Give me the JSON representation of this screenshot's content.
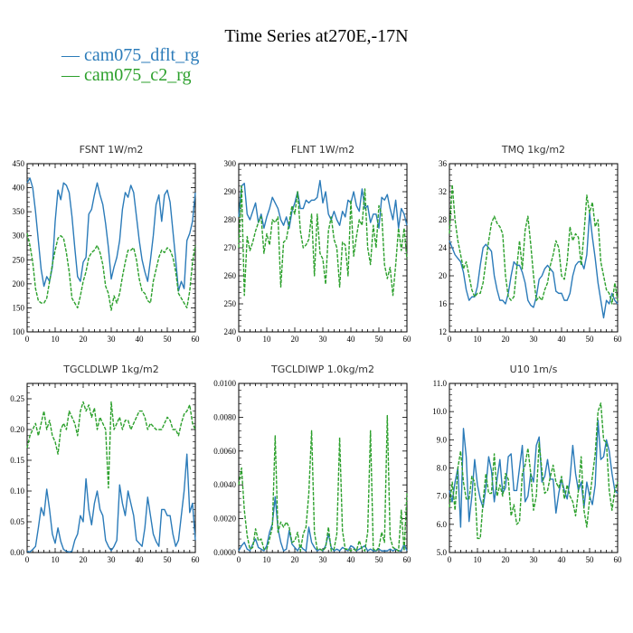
{
  "title": "Time Series at270E,-17N",
  "legend": [
    {
      "label": "— cam075_dflt_rg",
      "color": "#2b7bb9"
    },
    {
      "label": "— cam075_c2_rg",
      "color": "#2ca02c"
    }
  ],
  "colors": {
    "dflt": "#2b7bb9",
    "c2": "#2ca02c",
    "axis": "#000000"
  },
  "chart_data": [
    {
      "type": "line",
      "title": "FSNT   1W/m2",
      "xlim": [
        0,
        60
      ],
      "ylim": [
        100,
        450
      ],
      "xticks": [
        0,
        10,
        20,
        30,
        40,
        50,
        60
      ],
      "yticks": [
        100,
        150,
        200,
        250,
        300,
        350,
        400,
        450
      ],
      "ytick_labels": [
        "100",
        "150",
        "200",
        "250",
        "300",
        "350",
        "400",
        "450"
      ],
      "series": [
        {
          "name": "cam075_dflt_rg",
          "color": "#2b7bb9",
          "dashed": false,
          "values": [
            410,
            420,
            400,
            350,
            290,
            230,
            195,
            215,
            205,
            235,
            330,
            395,
            375,
            410,
            405,
            390,
            340,
            275,
            215,
            205,
            245,
            255,
            345,
            355,
            385,
            410,
            385,
            365,
            325,
            275,
            210,
            235,
            255,
            290,
            355,
            390,
            380,
            405,
            390,
            340,
            290,
            250,
            225,
            205,
            250,
            300,
            365,
            385,
            330,
            385,
            395,
            370,
            310,
            250,
            185,
            205,
            190,
            290,
            305,
            330,
            390
          ]
        },
        {
          "name": "cam075_c2_rg",
          "color": "#2ca02c",
          "dashed": true,
          "values": [
            305,
            280,
            245,
            190,
            165,
            160,
            160,
            170,
            205,
            240,
            270,
            295,
            300,
            295,
            265,
            225,
            170,
            160,
            150,
            175,
            205,
            225,
            255,
            265,
            270,
            280,
            265,
            240,
            195,
            180,
            145,
            175,
            160,
            180,
            215,
            245,
            270,
            270,
            275,
            250,
            210,
            185,
            180,
            165,
            160,
            205,
            230,
            255,
            270,
            265,
            275,
            270,
            255,
            225,
            180,
            170,
            160,
            150,
            185,
            245,
            280
          ]
        }
      ]
    },
    {
      "type": "line",
      "title": "FLNT   1W/m2",
      "xlim": [
        0,
        60
      ],
      "ylim": [
        240,
        300
      ],
      "xticks": [
        0,
        10,
        20,
        30,
        40,
        50,
        60
      ],
      "yticks": [
        240,
        250,
        260,
        270,
        280,
        290,
        300
      ],
      "ytick_labels": [
        "240",
        "250",
        "260",
        "270",
        "280",
        "290",
        "300"
      ],
      "series": [
        {
          "name": "cam075_dflt_rg",
          "color": "#2b7bb9",
          "dashed": false,
          "values": [
            281,
            292,
            293,
            282,
            280,
            283,
            286,
            279,
            282,
            277,
            281,
            284,
            288,
            286,
            284,
            280,
            278,
            281,
            277,
            283,
            286,
            290,
            284,
            284,
            287,
            286,
            287,
            287,
            288,
            294,
            286,
            290,
            282,
            280,
            283,
            280,
            278,
            283,
            281,
            287,
            286,
            290,
            285,
            283,
            291,
            284,
            285,
            279,
            282,
            282,
            277,
            288,
            287,
            289,
            284,
            280,
            287,
            277,
            284,
            282,
            278
          ]
        },
        {
          "name": "cam075_c2_rg",
          "color": "#2ca02c",
          "dashed": true,
          "values": [
            270,
            292,
            253,
            274,
            269,
            272,
            276,
            279,
            281,
            268,
            275,
            271,
            280,
            279,
            281,
            256,
            272,
            273,
            279,
            285,
            282,
            290,
            276,
            270,
            271,
            273,
            282,
            260,
            282,
            268,
            266,
            257,
            276,
            281,
            273,
            270,
            256,
            272,
            271,
            260,
            287,
            267,
            274,
            280,
            278,
            291,
            270,
            264,
            278,
            270,
            285,
            282,
            264,
            259,
            263,
            253,
            264,
            277,
            269,
            277,
            266
          ]
        }
      ]
    },
    {
      "type": "line",
      "title": "TMQ   1kg/m2",
      "xlim": [
        0,
        60
      ],
      "ylim": [
        12,
        36
      ],
      "xticks": [
        0,
        10,
        20,
        30,
        40,
        50,
        60
      ],
      "yticks": [
        12,
        16,
        20,
        24,
        28,
        32,
        36
      ],
      "ytick_labels": [
        "12",
        "16",
        "20",
        "24",
        "28",
        "32",
        "36"
      ],
      "series": [
        {
          "name": "cam075_dflt_rg",
          "color": "#2b7bb9",
          "dashed": false,
          "values": [
            25,
            24,
            23,
            22.5,
            22,
            20.5,
            18,
            16.5,
            17,
            17,
            18.5,
            21.5,
            24,
            24.5,
            24,
            23.5,
            20,
            18,
            16.5,
            16.5,
            16,
            17.5,
            20,
            22,
            21.5,
            21.5,
            20.5,
            19,
            16.5,
            15.8,
            15.5,
            17,
            19.5,
            20,
            21,
            21.5,
            21,
            20.5,
            17.8,
            17.5,
            17.5,
            16.5,
            16.5,
            17.5,
            20,
            21.5,
            22,
            22,
            21,
            23,
            29,
            25.5,
            22.5,
            19,
            16.5,
            14,
            16.5,
            16,
            17.5,
            16.5,
            16
          ]
        },
        {
          "name": "cam075_c2_rg",
          "color": "#2ca02c",
          "dashed": true,
          "values": [
            26,
            33,
            28,
            25,
            23,
            21,
            22,
            20,
            18,
            17,
            17.5,
            17.5,
            19,
            22,
            25,
            27.5,
            28.5,
            27.5,
            27,
            26,
            20,
            17,
            16.5,
            17,
            21,
            25,
            21,
            26.5,
            28.5,
            24.5,
            20,
            16.5,
            17,
            16.5,
            18,
            19,
            21.5,
            23,
            25,
            24,
            20,
            19.5,
            22,
            27,
            25,
            26,
            25.5,
            21.5,
            26,
            31.5,
            29,
            30.5,
            27,
            28,
            22,
            20,
            18,
            17.5,
            16,
            19,
            16.5
          ]
        }
      ]
    },
    {
      "type": "line",
      "title": "TGCLDLWP   1kg/m2",
      "xlim": [
        0,
        60
      ],
      "ylim": [
        0,
        0.275
      ],
      "xticks": [
        0,
        10,
        20,
        30,
        40,
        50,
        60
      ],
      "yticks": [
        0,
        0.05,
        0.1,
        0.15,
        0.2,
        0.25
      ],
      "ytick_labels": [
        "0.00",
        "0.05",
        "0.10",
        "0.15",
        "0.20",
        "0.25"
      ],
      "series": [
        {
          "name": "cam075_dflt_rg",
          "color": "#2b7bb9",
          "dashed": false,
          "values": [
            0.002,
            0.001,
            0.005,
            0.01,
            0.04,
            0.073,
            0.06,
            0.103,
            0.07,
            0.03,
            0.015,
            0.04,
            0.018,
            0.005,
            0.002,
            0.001,
            0.002,
            0.02,
            0.03,
            0.06,
            0.05,
            0.12,
            0.07,
            0.045,
            0.08,
            0.1,
            0.07,
            0.06,
            0.02,
            0.01,
            0.003,
            0.01,
            0.02,
            0.11,
            0.08,
            0.06,
            0.1,
            0.08,
            0.06,
            0.02,
            0.015,
            0.01,
            0.04,
            0.09,
            0.06,
            0.03,
            0.018,
            0.01,
            0.07,
            0.07,
            0.06,
            0.06,
            0.03,
            0.01,
            0.02,
            0.06,
            0.1,
            0.16,
            0.065,
            0.08,
            0.02
          ]
        },
        {
          "name": "cam075_c2_rg",
          "color": "#2ca02c",
          "dashed": true,
          "values": [
            0.17,
            0.19,
            0.2,
            0.21,
            0.19,
            0.21,
            0.23,
            0.2,
            0.215,
            0.19,
            0.18,
            0.16,
            0.2,
            0.21,
            0.2,
            0.23,
            0.22,
            0.21,
            0.19,
            0.23,
            0.245,
            0.23,
            0.24,
            0.22,
            0.235,
            0.2,
            0.22,
            0.21,
            0.2,
            0.105,
            0.245,
            0.2,
            0.21,
            0.22,
            0.2,
            0.215,
            0.215,
            0.2,
            0.21,
            0.22,
            0.23,
            0.23,
            0.22,
            0.2,
            0.21,
            0.205,
            0.2,
            0.2,
            0.2,
            0.21,
            0.22,
            0.215,
            0.2,
            0.2,
            0.19,
            0.21,
            0.225,
            0.23,
            0.24,
            0.21,
            0.2
          ]
        }
      ]
    },
    {
      "type": "line",
      "title": "TGCLDIWP   1.0kg/m2",
      "xlim": [
        0,
        60
      ],
      "ylim": [
        0,
        0.01
      ],
      "xticks": [
        0,
        10,
        20,
        30,
        40,
        50,
        60
      ],
      "yticks": [
        0,
        0.002,
        0.004,
        0.006,
        0.008,
        0.01
      ],
      "ytick_labels": [
        "0.0000",
        "0.0020",
        "0.0040",
        "0.0060",
        "0.0080",
        "0.0100"
      ],
      "series": [
        {
          "name": "cam075_dflt_rg",
          "color": "#2b7bb9",
          "dashed": false,
          "values": [
            0.0001,
            0.0004,
            0.0006,
            0.0002,
            0.0001,
            0.0005,
            0.0008,
            0.0003,
            0.0002,
            0.0001,
            0.0004,
            0.0012,
            0.0017,
            0.0033,
            0.0014,
            0.0006,
            0.0001,
            0.0002,
            0.0013,
            0.0005,
            0.0003,
            0.0001,
            0.0004,
            0.0002,
            0.0001,
            0.0015,
            0.0006,
            0.0003,
            0.0001,
            0.0002,
            0.0001,
            0.0004,
            0.0011,
            0.0003,
            0.0001,
            0.0002,
            0.0001,
            0.0003,
            0.0002,
            0.0001,
            0.0004,
            0.0003,
            0.0001,
            0.0002,
            0.0003,
            0.0004,
            0.0001,
            0.0002,
            0.0001,
            0.0001,
            0.0002,
            0.0001,
            0.0001,
            0.0001,
            0.0002,
            0.0001,
            0.0002,
            0.0001,
            0.0001,
            0.0005,
            0.0001
          ]
        },
        {
          "name": "cam075_c2_rg",
          "color": "#2ca02c",
          "dashed": true,
          "values": [
            0.004,
            0.005,
            0.0025,
            0.001,
            0.0002,
            0.0003,
            0.0014,
            0.0007,
            0.0008,
            0.0002,
            0.0002,
            0.0008,
            0.0015,
            0.0069,
            0.0012,
            0.0018,
            0.0015,
            0.0018,
            0.0015,
            0.0006,
            0.0007,
            0.0012,
            0.0001,
            0.0011,
            0.0015,
            0.0035,
            0.0072,
            0.0012,
            0.0002,
            0.0002,
            0.0001,
            0.0003,
            0.0015,
            0.0001,
            0.0002,
            0.0011,
            0.0068,
            0.0013,
            0.0002,
            0.0002,
            0.0001,
            0.0002,
            0.0001,
            0.0007,
            0.0002,
            0.0001,
            0.0012,
            0.0072,
            0.0002,
            0.0001,
            0.0003,
            0.0012,
            0.0006,
            0.0081,
            0.0009,
            0.0003,
            0.0002,
            0.0001,
            0.0025,
            0.0001,
            0.0035
          ]
        }
      ]
    },
    {
      "type": "line",
      "title": "U10   1m/s",
      "xlim": [
        0,
        60
      ],
      "ylim": [
        5,
        11
      ],
      "xticks": [
        0,
        10,
        20,
        30,
        40,
        50,
        60
      ],
      "yticks": [
        5,
        6,
        7,
        8,
        9,
        10,
        11
      ],
      "ytick_labels": [
        "5.0",
        "6.0",
        "7.0",
        "8.0",
        "9.0",
        "10.0",
        "11.0"
      ],
      "series": [
        {
          "name": "cam075_dflt_rg",
          "color": "#2b7bb9",
          "dashed": false,
          "values": [
            7.2,
            6.8,
            7.5,
            8.0,
            5.9,
            9.4,
            8.4,
            6.1,
            7.0,
            8.3,
            7.4,
            6.9,
            6.6,
            7.3,
            8.4,
            7.9,
            6.8,
            7.6,
            8.3,
            7.1,
            7.3,
            8.4,
            8.5,
            7.2,
            7.2,
            8.0,
            8.8,
            6.8,
            7.0,
            7.8,
            7.5,
            8.8,
            9.1,
            7.5,
            7.7,
            8.3,
            7.6,
            7.6,
            6.4,
            7.1,
            7.6,
            7.2,
            6.9,
            7.6,
            8.8,
            7.8,
            7.2,
            7.5,
            6.6,
            7.5,
            7.0,
            6.7,
            7.4,
            9.7,
            8.3,
            8.4,
            9.0,
            8.6,
            7.8,
            7.2,
            7.1
          ]
        },
        {
          "name": "cam075_c2_rg",
          "color": "#2ca02c",
          "dashed": true,
          "values": [
            6.6,
            7.5,
            6.5,
            8.0,
            8.6,
            7.5,
            6.9,
            6.9,
            7.7,
            7.5,
            5.5,
            5.5,
            6.8,
            7.8,
            7.1,
            7.1,
            8.5,
            7.0,
            7.4,
            7.0,
            7.8,
            7.6,
            6.3,
            6.7,
            6.0,
            6.1,
            7.8,
            8.1,
            8.7,
            7.8,
            6.5,
            7.0,
            8.9,
            7.9,
            7.1,
            7.2,
            7.7,
            8.1,
            7.5,
            7.3,
            7.7,
            6.9,
            7.4,
            7.0,
            6.8,
            6.3,
            7.2,
            8.4,
            6.5,
            5.9,
            6.9,
            7.7,
            8.5,
            10.0,
            10.3,
            9.0,
            8.9,
            7.2,
            6.5,
            7.2,
            7.5
          ]
        }
      ]
    }
  ]
}
